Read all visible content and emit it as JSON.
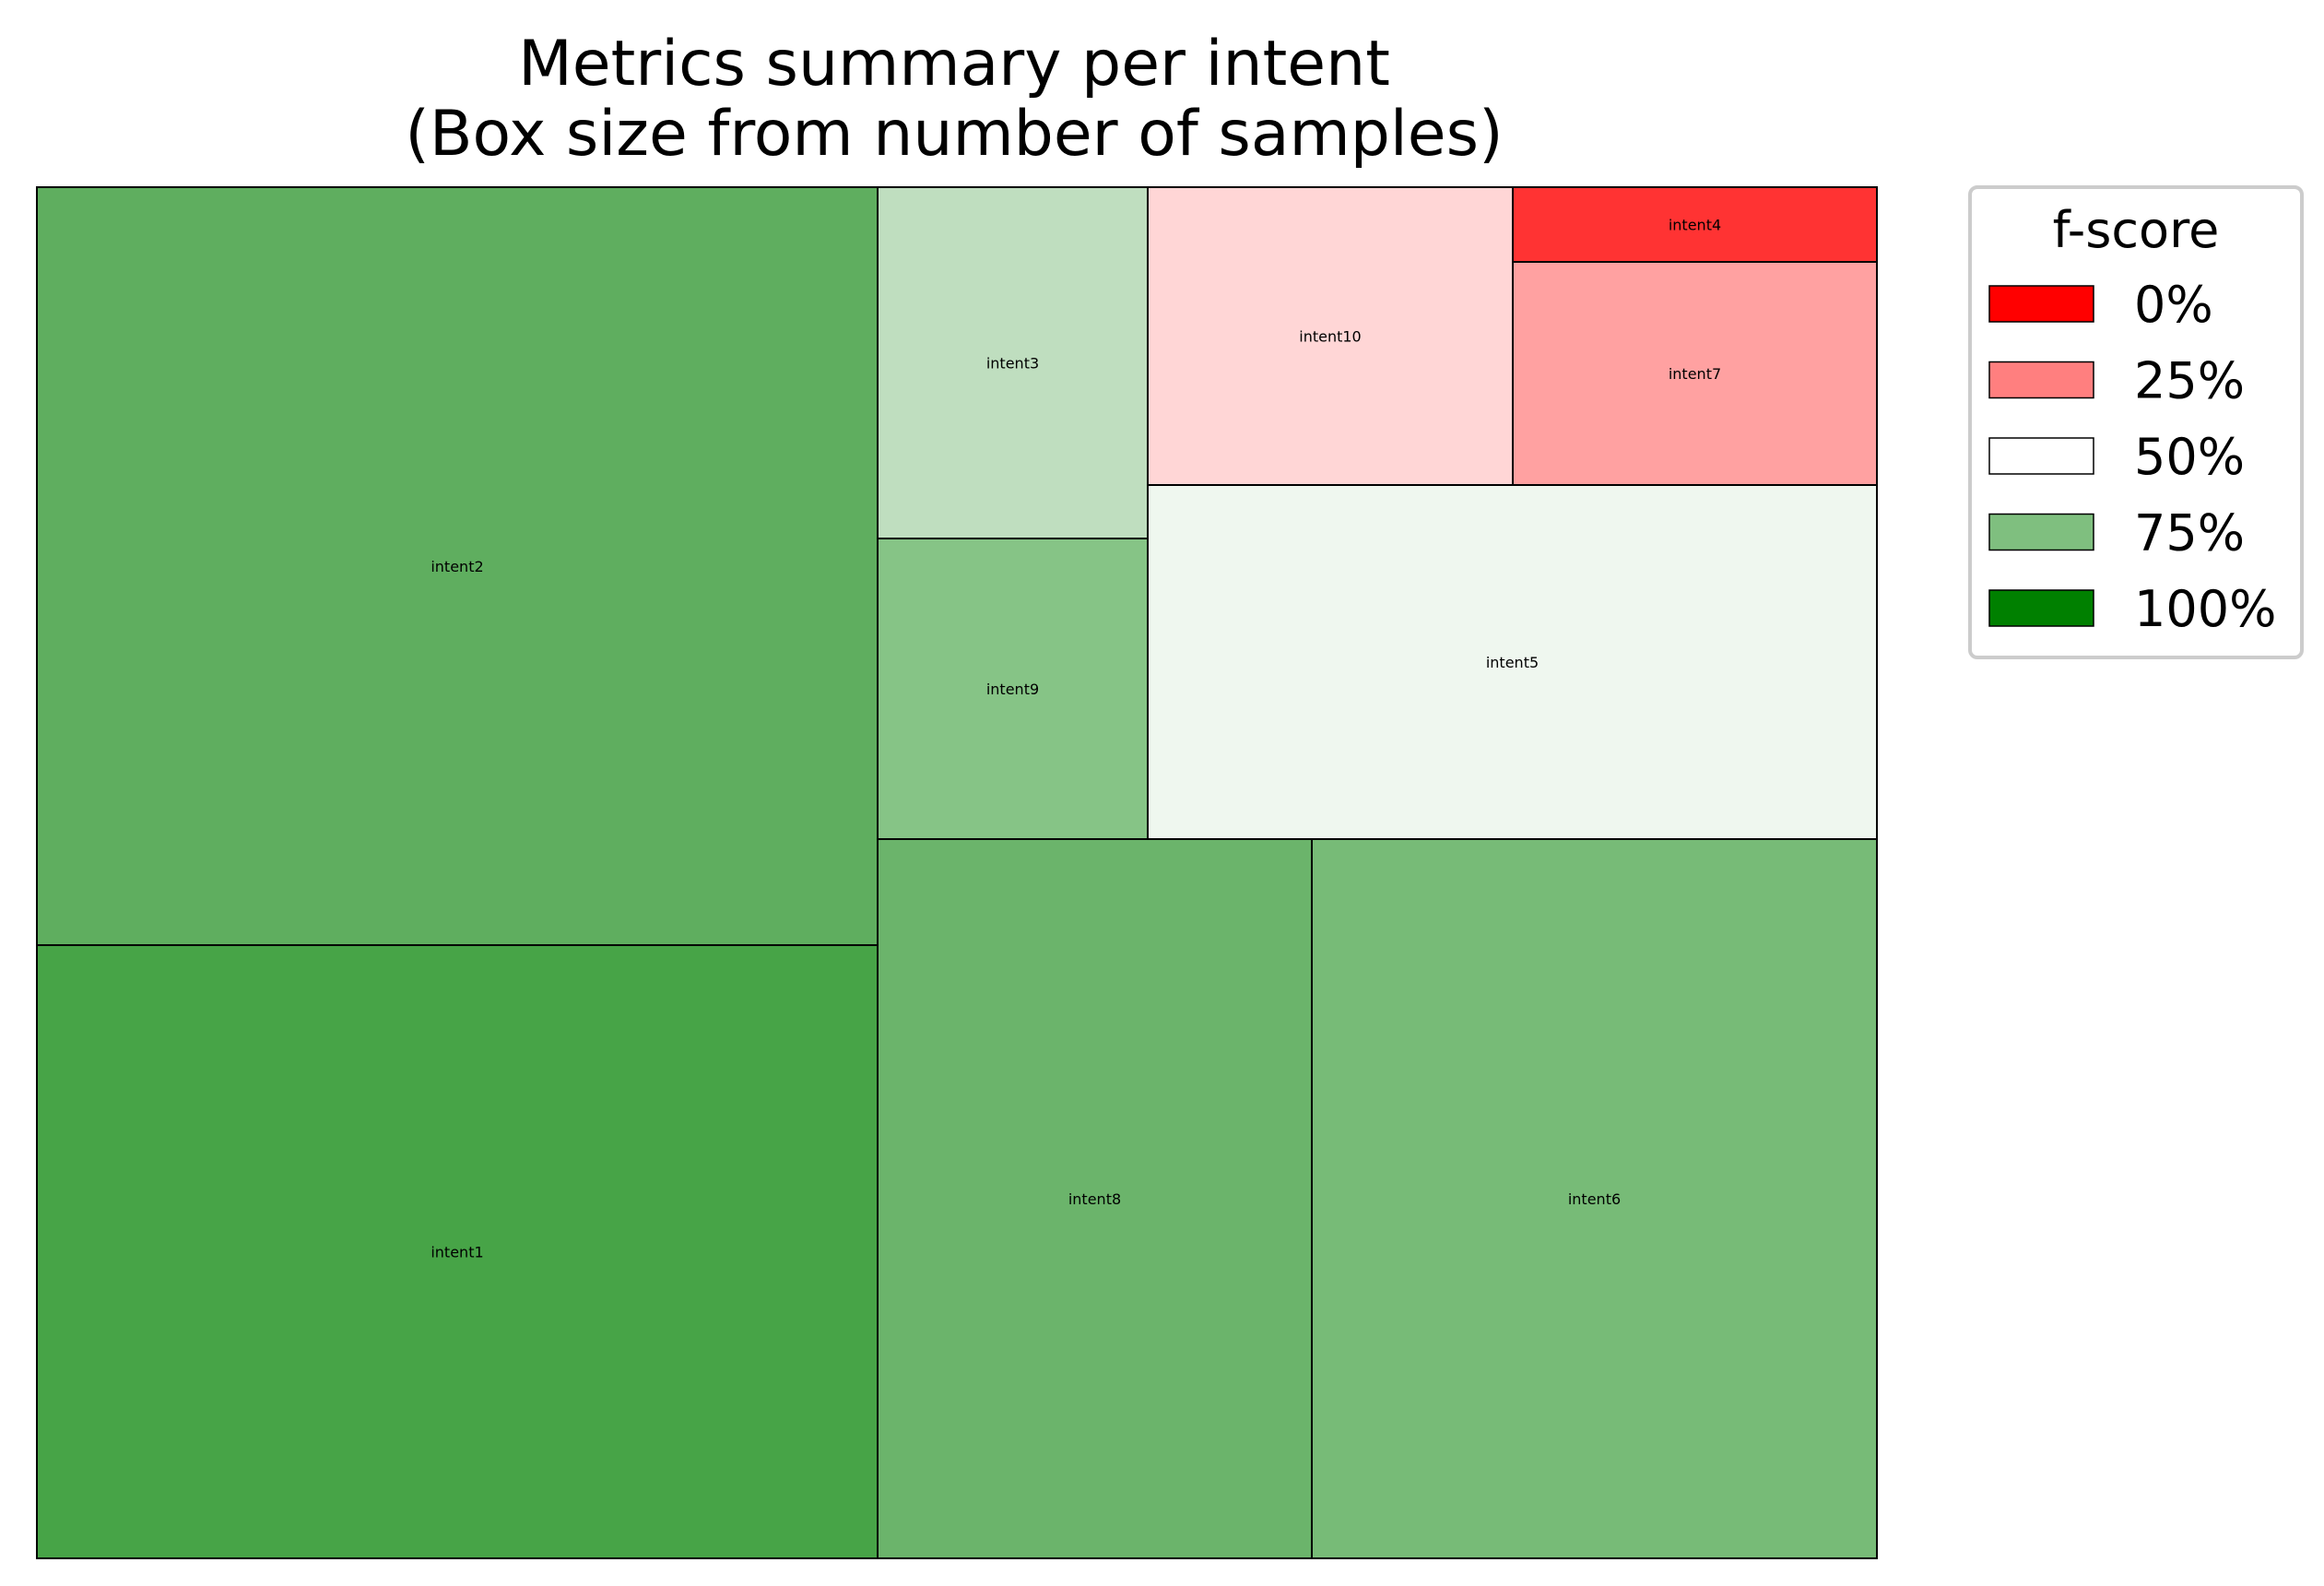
{
  "chart_data": {
    "type": "treemap",
    "title": "Metrics summary per intent",
    "subtitle": "(Box size from number of samples)",
    "size_metric": "number of samples",
    "color_metric": "f-score",
    "items": [
      {
        "label": "intent2",
        "f_score": 0.8,
        "color": "#5fae5f"
      },
      {
        "label": "intent1",
        "f_score": 0.86,
        "color": "#47a447"
      },
      {
        "label": "intent3",
        "f_score": 0.63,
        "color": "#bfdebf"
      },
      {
        "label": "intent9",
        "f_score": 0.74,
        "color": "#86c486"
      },
      {
        "label": "intent10",
        "f_score": 0.46,
        "color": "#ffd6d6"
      },
      {
        "label": "intent4",
        "f_score": 0.05,
        "color": "#ff3333"
      },
      {
        "label": "intent7",
        "f_score": 0.34,
        "color": "#ffa1a1"
      },
      {
        "label": "intent5",
        "f_score": 0.53,
        "color": "#eff7ef"
      },
      {
        "label": "intent8",
        "f_score": 0.79,
        "color": "#6bb46b"
      },
      {
        "label": "intent6",
        "f_score": 0.76,
        "color": "#77bb77"
      }
    ],
    "legend": {
      "title": "f-score",
      "placement": "upper right, outside plot",
      "entries": [
        {
          "label": "0%",
          "color": "#ff0000"
        },
        {
          "label": "25%",
          "color": "#ff7f7f"
        },
        {
          "label": "50%",
          "color": "#ffffff"
        },
        {
          "label": "75%",
          "color": "#7fbf7f"
        },
        {
          "label": "100%",
          "color": "#008000"
        }
      ]
    }
  }
}
